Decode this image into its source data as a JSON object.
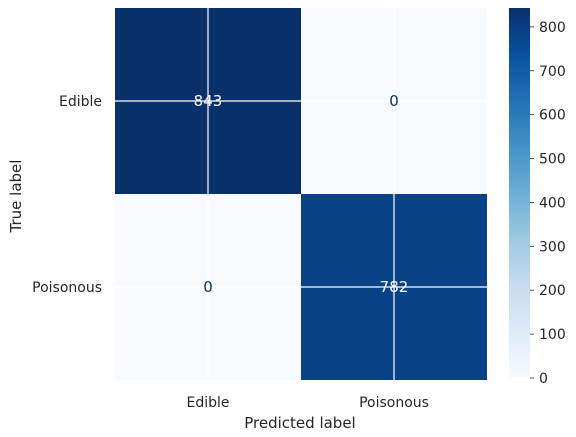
{
  "chart_data": {
    "type": "heatmap",
    "title": "",
    "xlabel": "Predicted label",
    "ylabel": "True label",
    "x_categories": [
      "Edible",
      "Poisonous"
    ],
    "y_categories": [
      "Edible",
      "Poisonous"
    ],
    "values": [
      [
        843,
        0
      ],
      [
        0,
        782
      ]
    ],
    "colormap": "Blues",
    "colorbar": {
      "range": [
        0,
        843
      ],
      "ticks": [
        0,
        100,
        200,
        300,
        400,
        500,
        600,
        700,
        800
      ]
    },
    "grid": true,
    "colors": {
      "low": "#f7fbff",
      "high": "#08306b",
      "text_on_dark": "#ffffff",
      "text_on_light": "#08306b",
      "grid_line": "#ffffff"
    }
  }
}
